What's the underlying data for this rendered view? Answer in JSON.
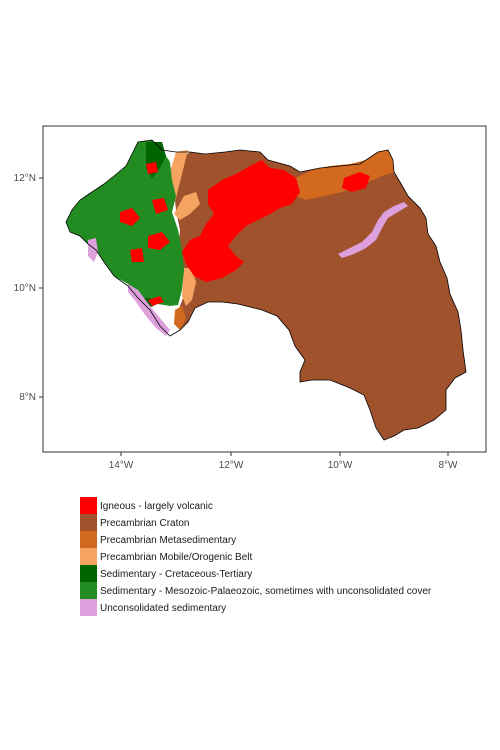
{
  "map": {
    "x_ticks": [
      {
        "value": -14,
        "label": "14°W"
      },
      {
        "value": -12,
        "label": "12°W"
      },
      {
        "value": -10,
        "label": "10°W"
      },
      {
        "value": -8,
        "label": "8°W"
      }
    ],
    "y_ticks": [
      {
        "value": 12,
        "label": "12°N"
      },
      {
        "value": 10,
        "label": "10°N"
      },
      {
        "value": 8,
        "label": "8°N"
      }
    ],
    "x_range": [
      -15.35,
      -7.3
    ],
    "y_range": [
      6.9,
      12.95
    ]
  },
  "legend": {
    "items": [
      {
        "key": "igneous",
        "label": "Igneous - largely volcanic",
        "color": "#ff0000"
      },
      {
        "key": "craton",
        "label": "Precambrian Craton",
        "color": "#a0522d"
      },
      {
        "key": "metasedimentary",
        "label": "Precambrian Metasedimentary",
        "color": "#d2691e"
      },
      {
        "key": "mobile-belt",
        "label": "Precambrian Mobile/Orogenic Belt",
        "color": "#f4a460"
      },
      {
        "key": "cretaceous",
        "label": "Sedimentary - Cretaceous-Tertiary",
        "color": "#006400"
      },
      {
        "key": "mesozoic",
        "label": "Sedimentary - Mesozoic-Palaeozoic, sometimes with unconsolidated cover",
        "color": "#228b22"
      },
      {
        "key": "unconsolidated",
        "label": "Unconsolidated sedimentary",
        "color": "#dda0dd"
      }
    ]
  }
}
